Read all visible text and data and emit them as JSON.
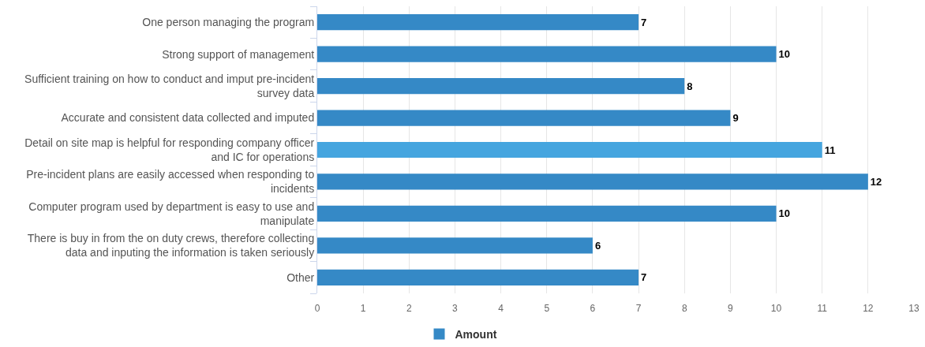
{
  "chart_data": {
    "type": "bar",
    "orientation": "horizontal",
    "categories": [
      "One person managing the program",
      "Strong support of management",
      "Sufficient training on how to conduct and imput pre-incident survey data",
      "Accurate and consistent data collected and imputed",
      "Detail on site map is helpful for responding company officer and IC for operations",
      "Pre-incident plans are easily accessed when responding to incidents",
      "Computer program used by department is easy to use and manipulate",
      "There is buy in from the on duty crews, therefore collecting data and inputing the information is taken seriously",
      "Other"
    ],
    "series": [
      {
        "name": "Amount",
        "color": "#3589c6",
        "colors": [
          "#3589c6",
          "#3589c6",
          "#3589c6",
          "#3589c6",
          "#45a5df",
          "#3589c6",
          "#3589c6",
          "#3589c6",
          "#3589c6"
        ],
        "values": [
          7,
          10,
          8,
          9,
          11,
          12,
          10,
          6,
          7
        ]
      }
    ],
    "xlim": [
      0,
      13
    ],
    "xticks": [
      0,
      1,
      2,
      3,
      4,
      5,
      6,
      7,
      8,
      9,
      10,
      11,
      12,
      13
    ],
    "data_labels": true,
    "grid": "x",
    "legend": "bottom"
  }
}
